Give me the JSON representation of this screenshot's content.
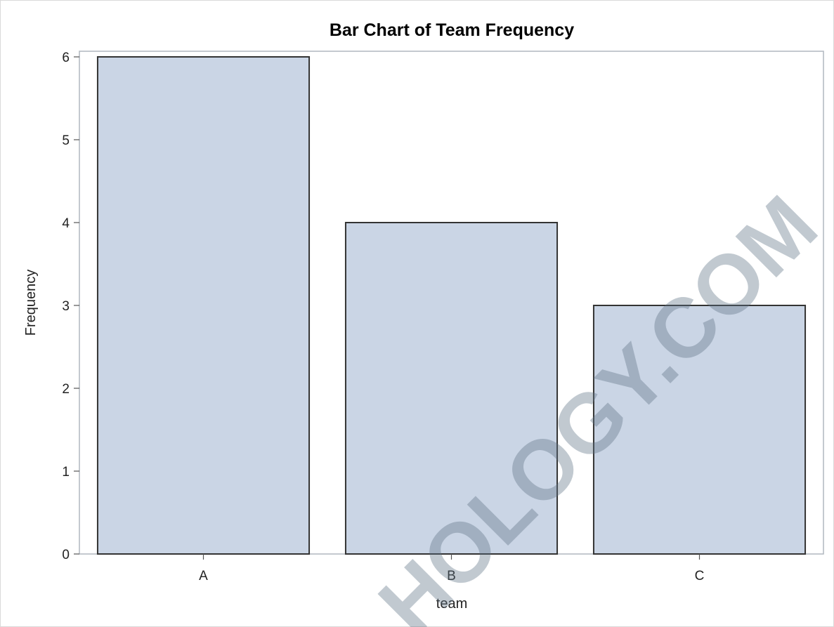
{
  "chart_data": {
    "type": "bar",
    "title": "Bar Chart of Team Frequency",
    "xlabel": "team",
    "ylabel": "Frequency",
    "categories": [
      "A",
      "B",
      "C"
    ],
    "values": [
      6,
      4,
      3
    ],
    "ylim": [
      0,
      6.07
    ],
    "yticks": [
      0,
      1,
      2,
      3,
      4,
      5,
      6
    ],
    "grid": false,
    "legend": "none",
    "colors": {
      "bar_fill": "#cad5e5",
      "bar_stroke": "#333333",
      "frame": "#b0b7bf"
    }
  },
  "watermark": "HOLOGY.COM"
}
